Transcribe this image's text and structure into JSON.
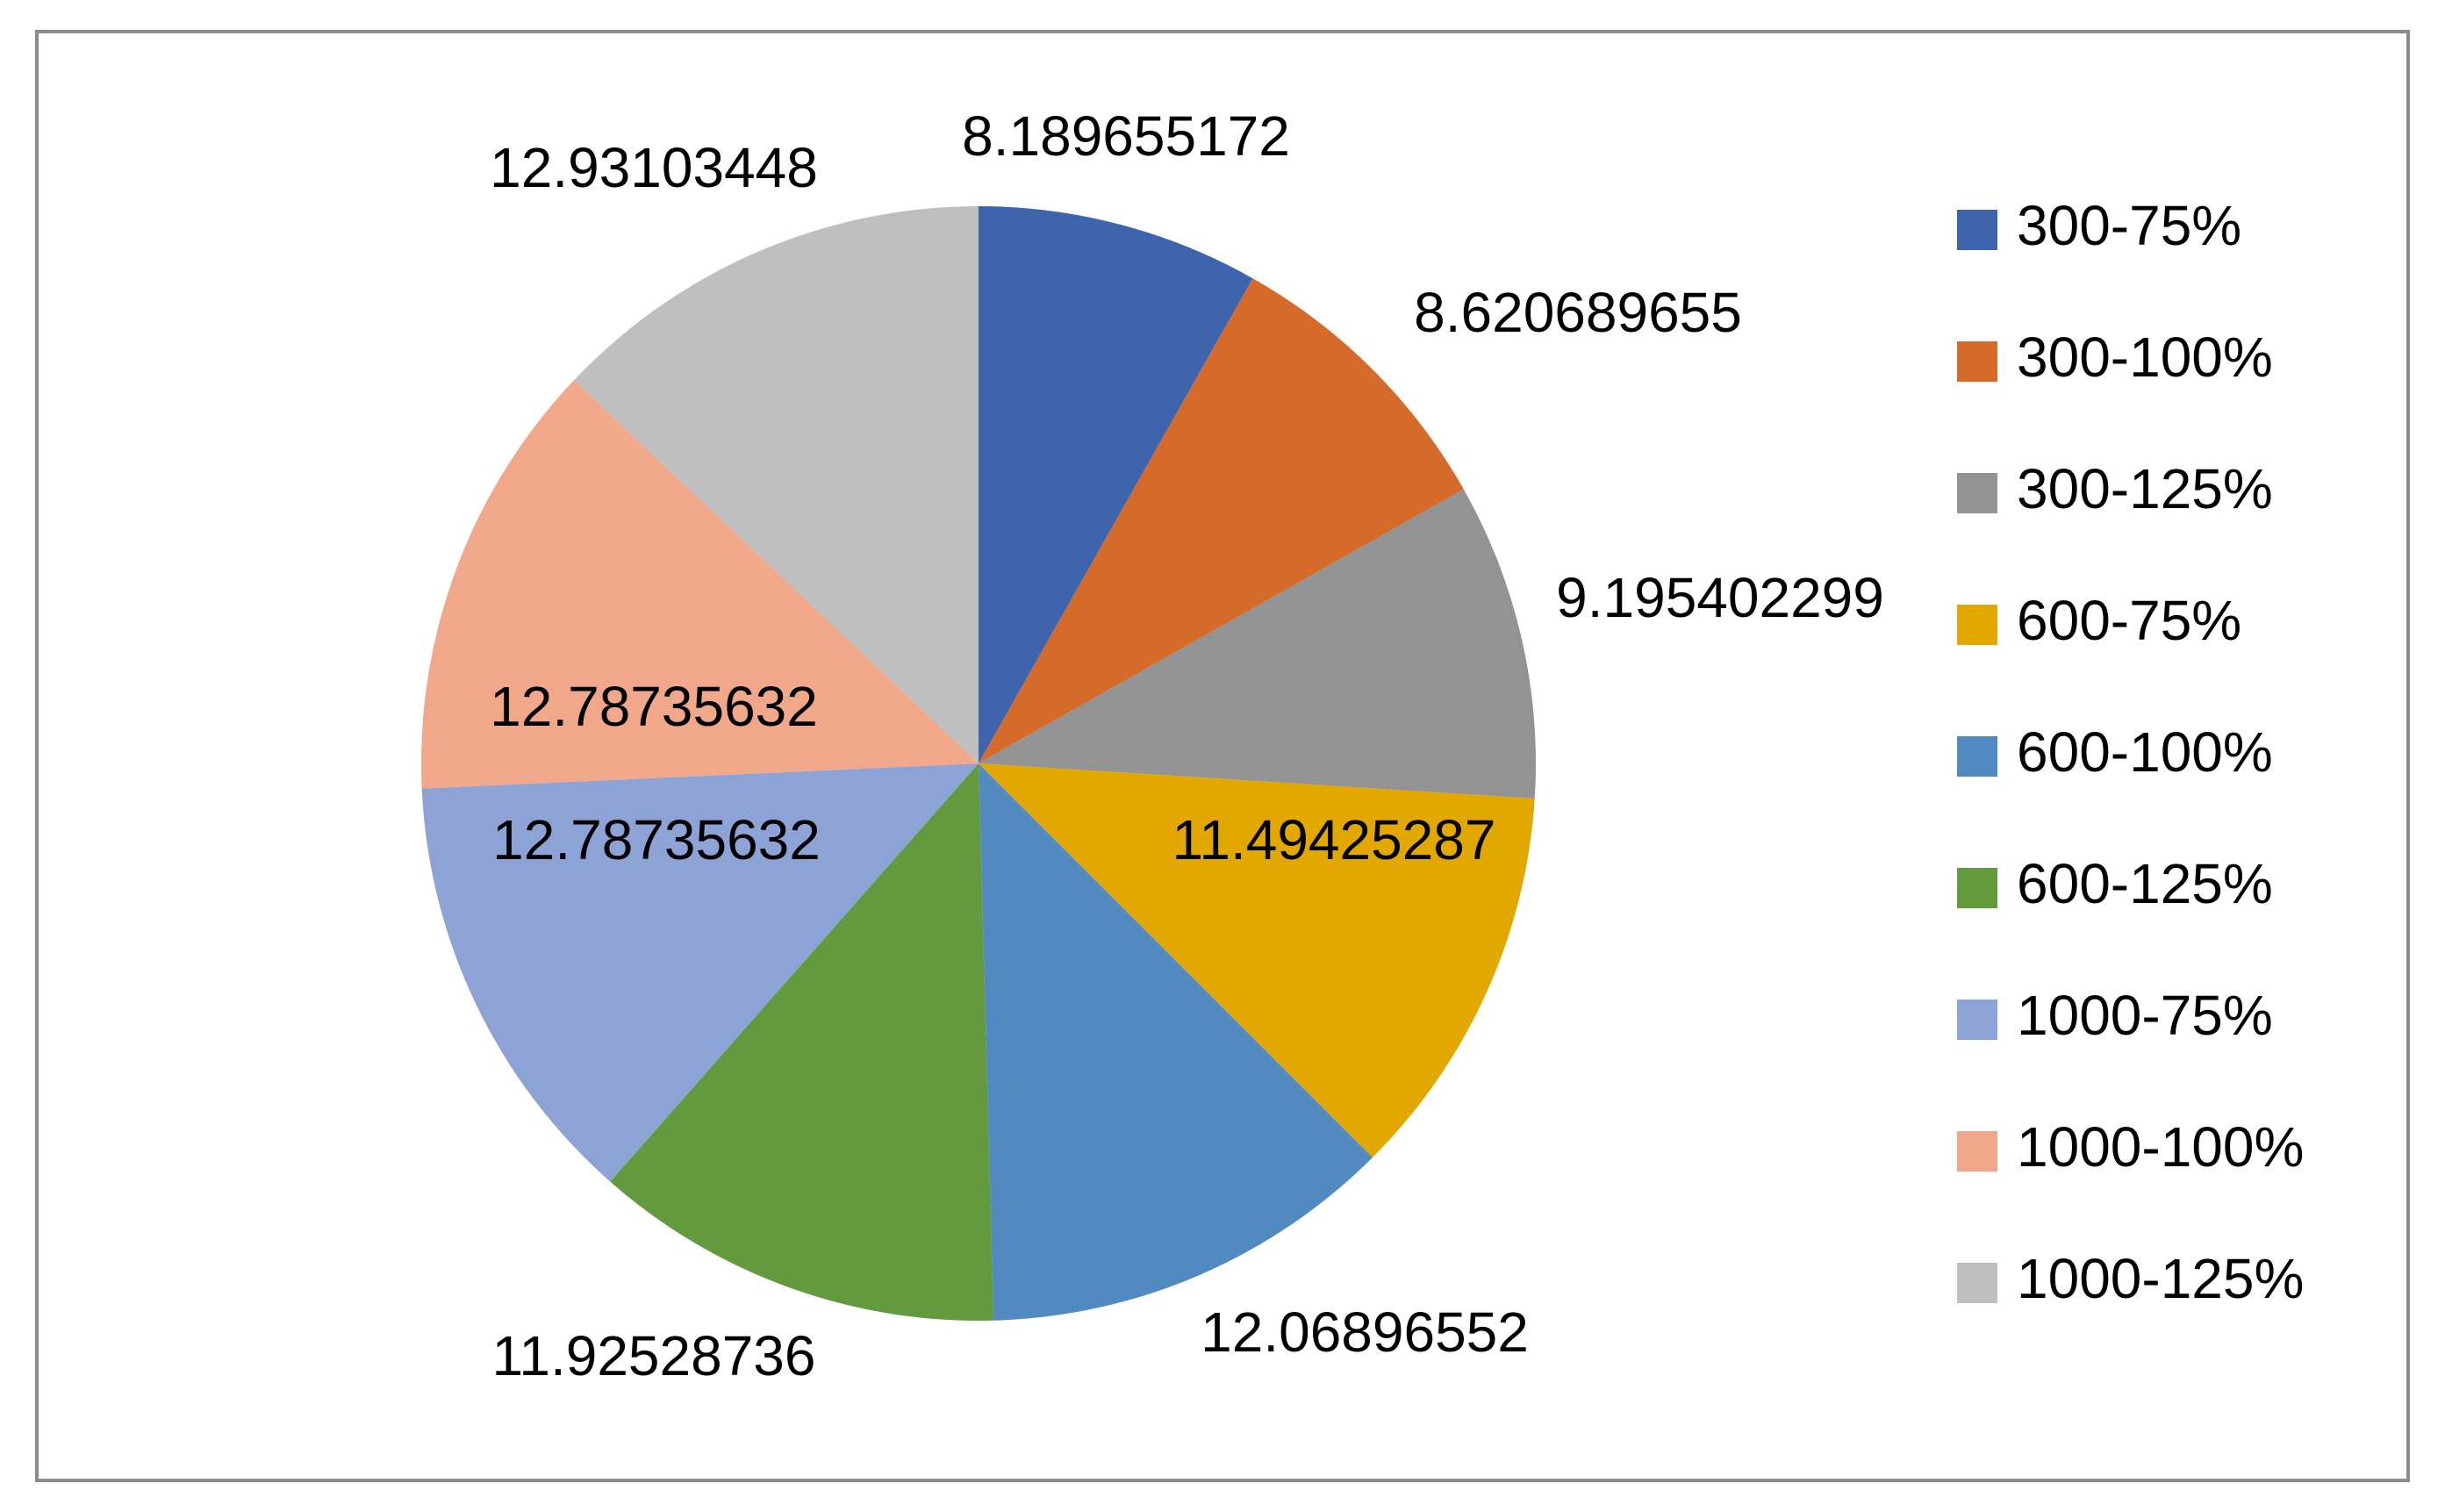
{
  "chart_data": {
    "type": "pie",
    "categories": [
      "300-75%",
      "300-100%",
      "300-125%",
      "600-75%",
      "600-100%",
      "600-125%",
      "1000-75%",
      "1000-100%",
      "1000-125%"
    ],
    "values": [
      8.189655172,
      8.620689655,
      9.195402299,
      11.49425287,
      12.06896552,
      11.92528736,
      12.78735632,
      12.78735632,
      12.93103448
    ],
    "value_labels": [
      "8.189655172",
      "8.620689655",
      "9.195402299",
      "11.49425287",
      "12.06896552",
      "11.92528736",
      "12.78735632",
      "12.78735632",
      "12.93103448"
    ],
    "colors": [
      "#3e64ad",
      "#d46b2a",
      "#939393",
      "#e2a800",
      "#518ac0",
      "#649a3e",
      "#8ea3d5",
      "#f0a78a",
      "#bfbfbf"
    ],
    "title": "",
    "legend_position": "right",
    "start_angle": "12 o'clock",
    "direction": "clockwise"
  }
}
